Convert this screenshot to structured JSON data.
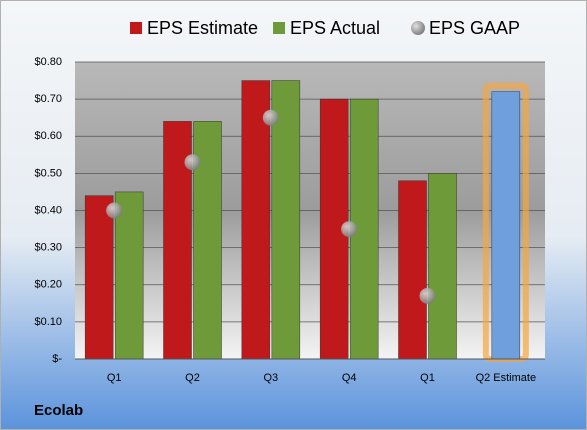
{
  "chart_data": {
    "type": "bar",
    "footer": "Ecolab",
    "categories": [
      "Q1",
      "Q2",
      "Q3",
      "Q4",
      "Q1",
      "Q2 Estimate"
    ],
    "series": [
      {
        "name": "EPS Estimate",
        "color": "#c0191c",
        "values": [
          0.44,
          0.64,
          0.75,
          0.7,
          0.48,
          null
        ]
      },
      {
        "name": "EPS Actual",
        "color": "#6f9a3a",
        "values": [
          0.45,
          0.64,
          0.75,
          0.7,
          0.5,
          null
        ]
      },
      {
        "name": "EPS GAAP",
        "color": "#8a8a8a",
        "values": [
          0.4,
          0.53,
          0.65,
          0.35,
          0.17,
          null
        ]
      }
    ],
    "highlight": {
      "color": "#6f9fdc",
      "values": [
        null,
        null,
        null,
        null,
        null,
        0.72
      ]
    },
    "ylim": [
      0,
      0.8
    ],
    "yticks": [
      {
        "value": 0,
        "label": "$-"
      },
      {
        "value": 0.1,
        "label": "$0.10"
      },
      {
        "value": 0.2,
        "label": "$0.20"
      },
      {
        "value": 0.3,
        "label": "$0.30"
      },
      {
        "value": 0.4,
        "label": "$0.40"
      },
      {
        "value": 0.5,
        "label": "$0.50"
      },
      {
        "value": 0.6,
        "label": "$0.60"
      },
      {
        "value": 0.7,
        "label": "$0.70"
      },
      {
        "value": 0.8,
        "label": "$0.80"
      }
    ],
    "grid": true
  }
}
